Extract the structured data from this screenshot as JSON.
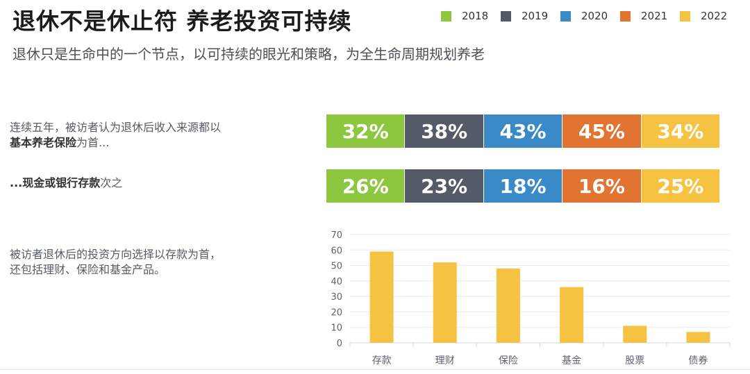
{
  "title": "退休不是休止符 养老投资可持续",
  "subtitle": "退休只是生命中的一个节点，以可持续的眼光和策略，为全生命周期规划养老",
  "legend": [
    {
      "year": "2018",
      "color": "#8dc63f"
    },
    {
      "year": "2019",
      "color": "#545a68"
    },
    {
      "year": "2020",
      "color": "#3a8ac8"
    },
    {
      "year": "2021",
      "color": "#e07430"
    },
    {
      "year": "2022",
      "color": "#f5c242"
    }
  ],
  "desc1": {
    "line1": "连续五年，被访者认为退休后收入来源都以",
    "bold": "基本养老保险",
    "rest": "为首..."
  },
  "desc2": {
    "bold": "...现金或银行存款",
    "rest": "次之"
  },
  "desc3": {
    "line1": "被访者退休后的投资方向选择以存款为首，",
    "line2": "还包括理财、保险和基金产品。"
  },
  "row1": [
    "32%",
    "38%",
    "43%",
    "45%",
    "34%"
  ],
  "row2": [
    "26%",
    "23%",
    "18%",
    "16%",
    "25%"
  ],
  "chart_data": {
    "type": "bar",
    "categories": [
      "存款",
      "理财",
      "保险",
      "基金",
      "股票",
      "债券"
    ],
    "values": [
      59,
      52,
      48,
      36,
      11,
      7
    ],
    "ylim": [
      0,
      70
    ],
    "yticks": [
      "0",
      "10",
      "20",
      "30",
      "40",
      "50",
      "60",
      "70"
    ],
    "grid": true,
    "color": "#f5c242"
  }
}
